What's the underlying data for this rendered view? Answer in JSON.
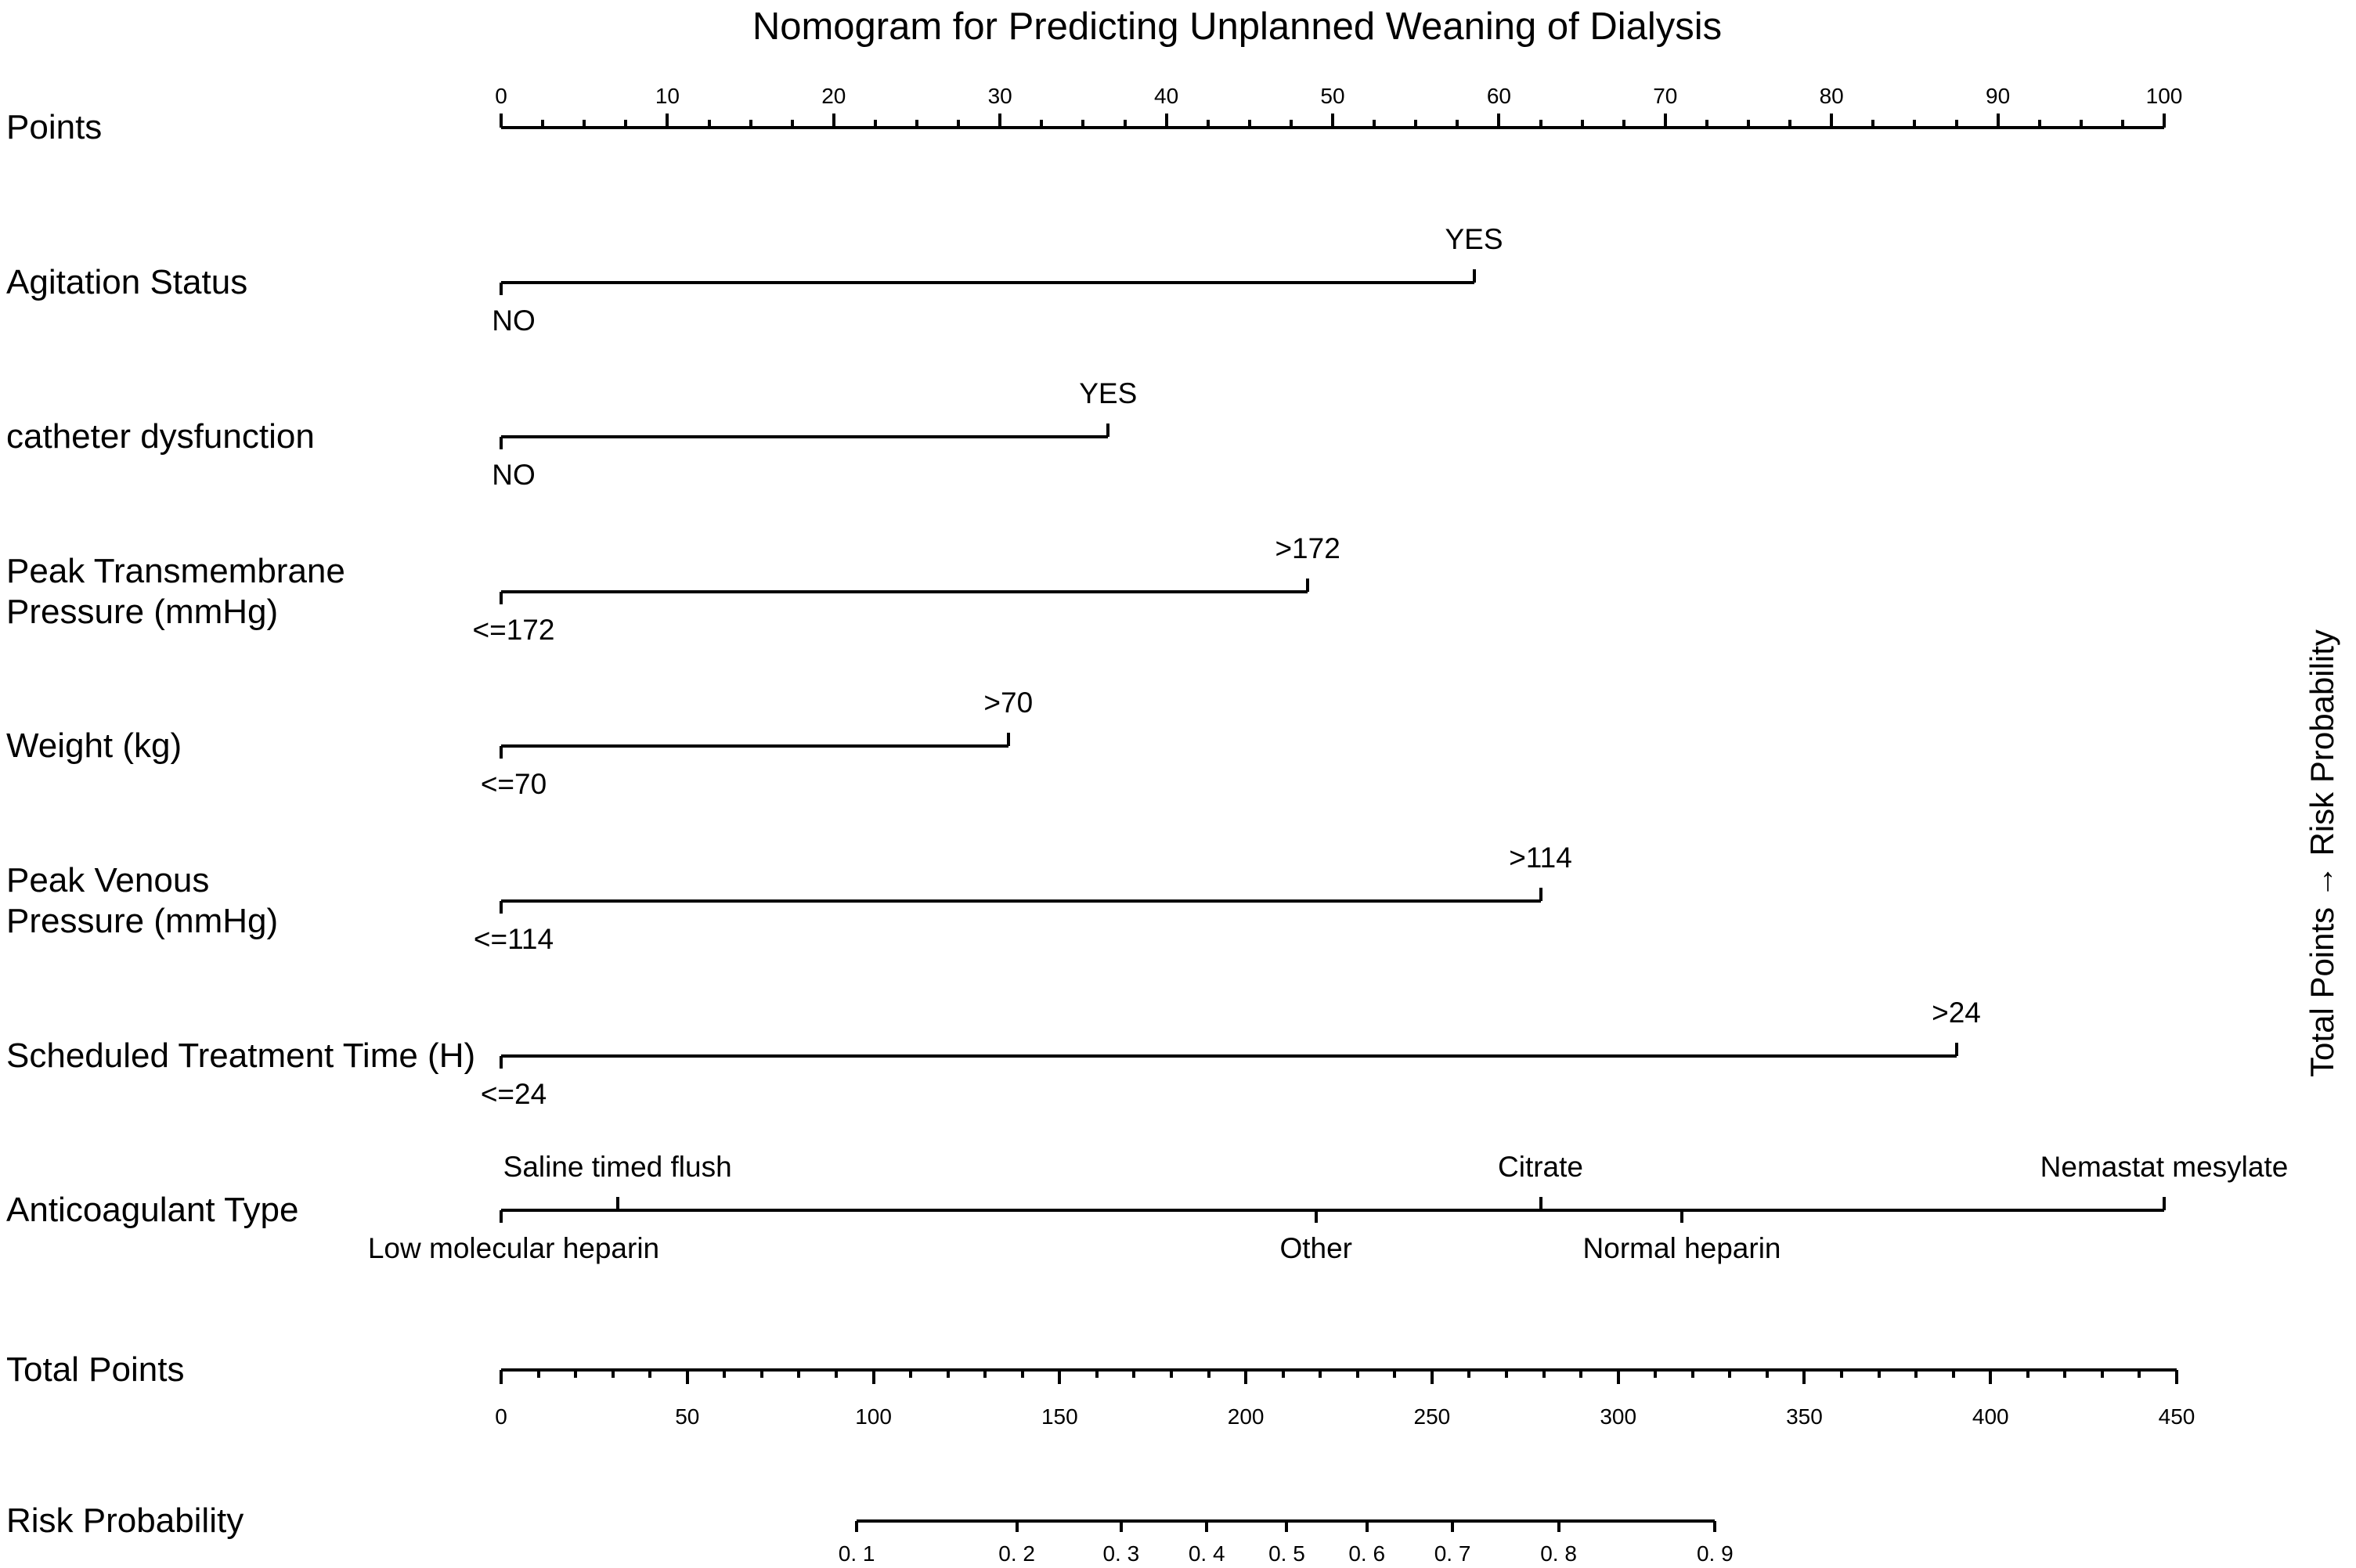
{
  "page": {
    "background": "#ffffff",
    "ink": "#000000"
  },
  "chart_data": {
    "type": "nomogram",
    "title": "Nomogram for Predicting Unplanned Weaning of Dialysis",
    "right_axis_label": "Total Points → Risk Probability",
    "points_axis": {
      "label": "Points",
      "min": 0,
      "max": 100,
      "major_step": 10,
      "minor_step": 2.5,
      "tick_labels": [
        "0",
        "10",
        "20",
        "30",
        "40",
        "50",
        "60",
        "70",
        "80",
        "90",
        "100"
      ]
    },
    "predictors": [
      {
        "label": "Agitation Status",
        "levels": [
          {
            "text": "NO",
            "points": 0,
            "side": "below"
          },
          {
            "text": "YES",
            "points": 58.5,
            "side": "above"
          }
        ]
      },
      {
        "label": "catheter dysfunction",
        "levels": [
          {
            "text": "NO",
            "points": 0,
            "side": "below"
          },
          {
            "text": "YES",
            "points": 36.5,
            "side": "above"
          }
        ]
      },
      {
        "label": "Peak Transmembrane\nPressure (mmHg)",
        "levels": [
          {
            "text": "<=172",
            "points": 0,
            "side": "below"
          },
          {
            "text": ">172",
            "points": 48.5,
            "side": "above"
          }
        ]
      },
      {
        "label": "Weight (kg)",
        "levels": [
          {
            "text": "<=70",
            "points": 0,
            "side": "below"
          },
          {
            "text": ">70",
            "points": 30.5,
            "side": "above"
          }
        ]
      },
      {
        "label": "Peak Venous\nPressure (mmHg)",
        "levels": [
          {
            "text": "<=114",
            "points": 0,
            "side": "below"
          },
          {
            "text": ">114",
            "points": 62.5,
            "side": "above"
          }
        ]
      },
      {
        "label": "Scheduled Treatment Time (H)",
        "levels": [
          {
            "text": "<=24",
            "points": 0,
            "side": "below"
          },
          {
            "text": ">24",
            "points": 87.5,
            "side": "above"
          }
        ]
      },
      {
        "label": "Anticoagulant Type",
        "levels": [
          {
            "text": "Low molecular heparin",
            "points": 0,
            "side": "below"
          },
          {
            "text": "Saline timed flush",
            "points": 7,
            "side": "above"
          },
          {
            "text": "Other",
            "points": 49,
            "side": "below"
          },
          {
            "text": "Citrate",
            "points": 62.5,
            "side": "above"
          },
          {
            "text": "Normal heparin",
            "points": 71,
            "side": "below"
          },
          {
            "text": "Nemastat mesylate",
            "points": 100,
            "side": "above"
          }
        ]
      }
    ],
    "total_points_axis": {
      "label": "Total Points",
      "min": 0,
      "max": 450,
      "major_step": 50,
      "minor_step": 10,
      "tick_labels": [
        "0",
        "50",
        "100",
        "150",
        "200",
        "250",
        "300",
        "350",
        "400",
        "450"
      ]
    },
    "risk_axis": {
      "label": "Risk Probability",
      "ticks": [
        {
          "text": "0. 1",
          "value": 0.1,
          "total_points": 95.5
        },
        {
          "text": "0. 2",
          "value": 0.2,
          "total_points": 138.5
        },
        {
          "text": "0. 3",
          "value": 0.3,
          "total_points": 166.5
        },
        {
          "text": "0. 4",
          "value": 0.4,
          "total_points": 189.5
        },
        {
          "text": "0. 5",
          "value": 0.5,
          "total_points": 211
        },
        {
          "text": "0. 6",
          "value": 0.6,
          "total_points": 232.5
        },
        {
          "text": "0. 7",
          "value": 0.7,
          "total_points": 255.5
        },
        {
          "text": "0. 8",
          "value": 0.8,
          "total_points": 284
        },
        {
          "text": "0. 9",
          "value": 0.9,
          "total_points": 326
        }
      ]
    }
  }
}
